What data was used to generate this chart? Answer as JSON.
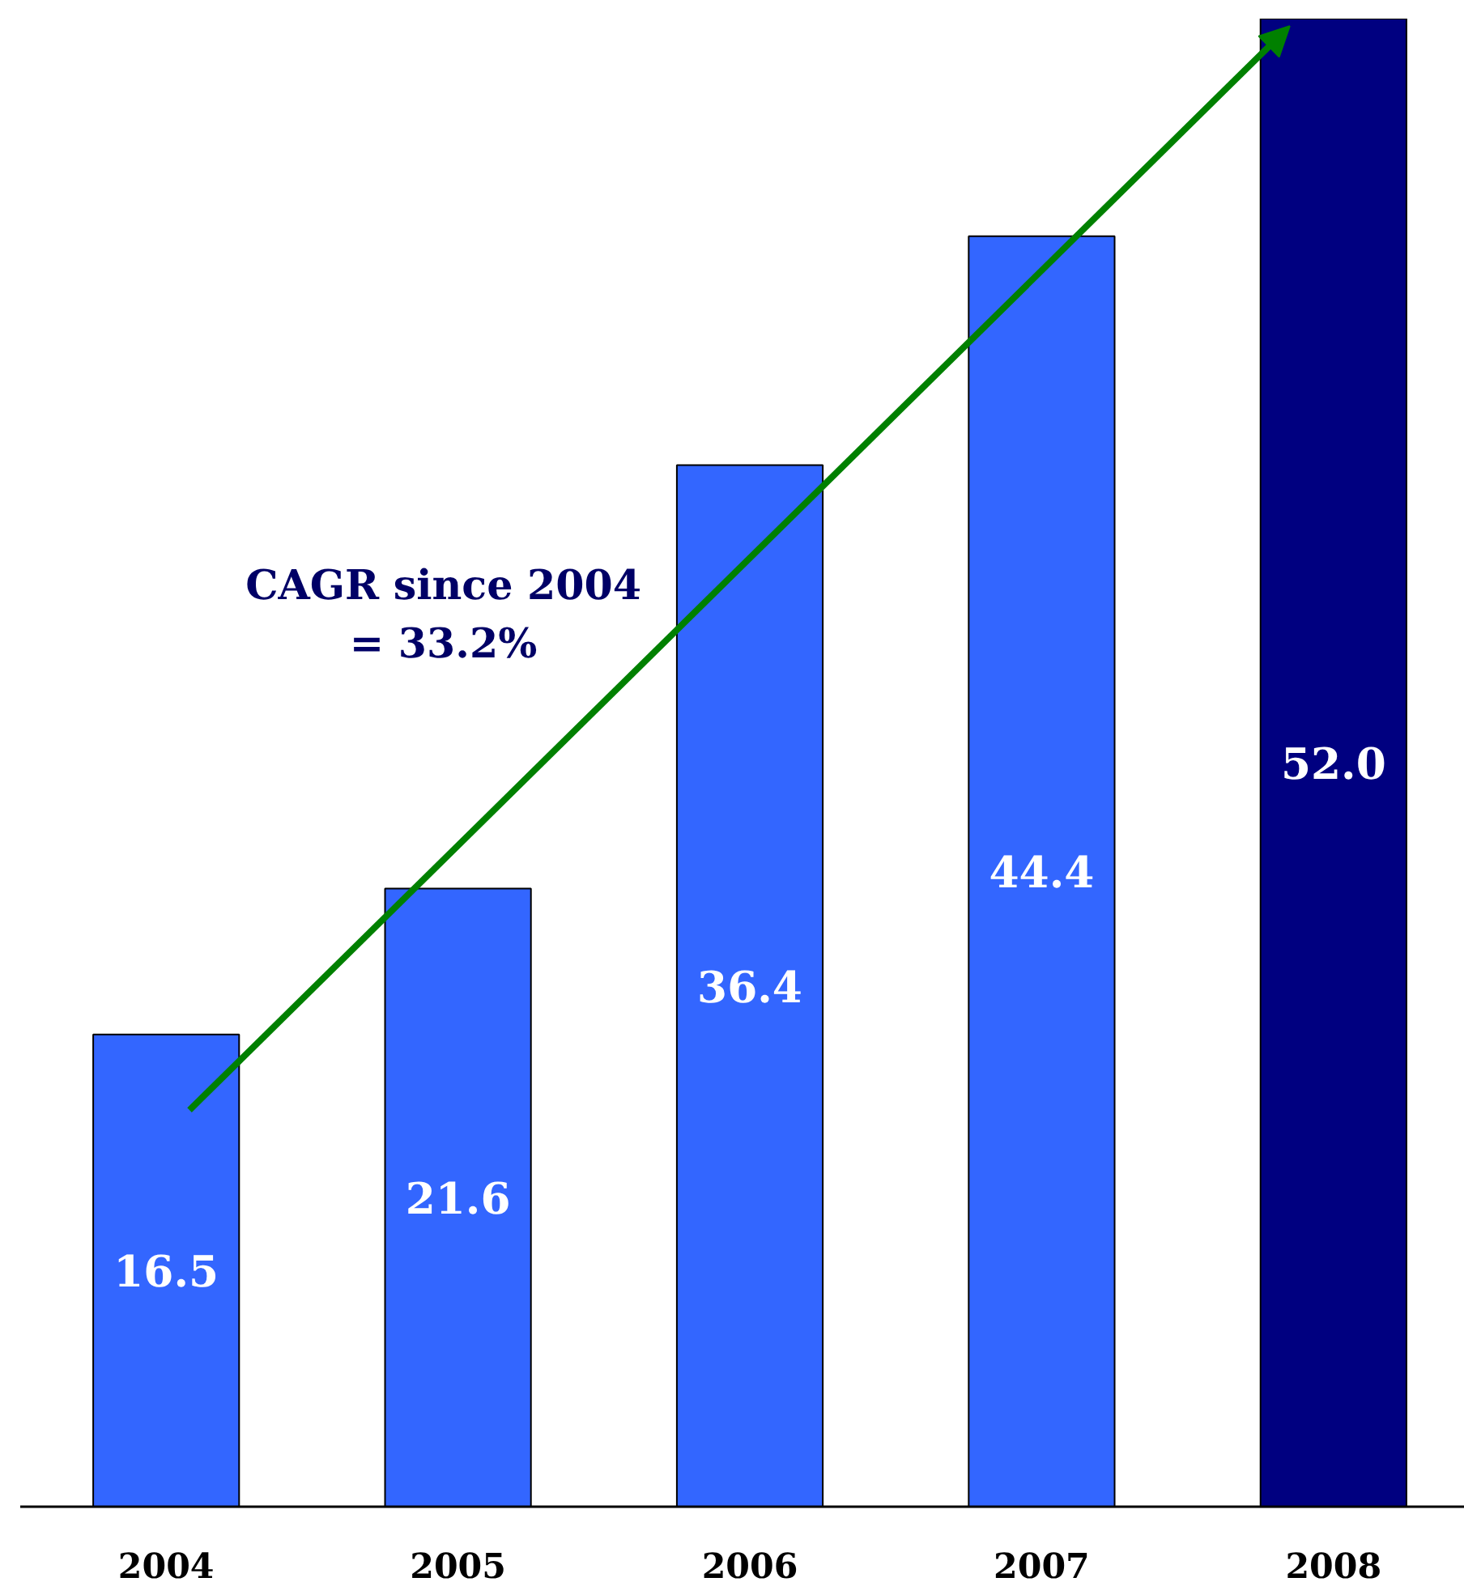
{
  "chart_data": {
    "type": "bar",
    "categories": [
      "2004",
      "2005",
      "2006",
      "2007",
      "2008"
    ],
    "values": [
      16.5,
      21.6,
      36.4,
      44.4,
      52.0
    ],
    "colors": [
      "#3366ff",
      "#3366ff",
      "#3366ff",
      "#3366ff",
      "#000080"
    ],
    "ylim": [
      0,
      52
    ],
    "value_labels": [
      "16.5",
      "21.6",
      "36.4",
      "44.4",
      "52.0"
    ],
    "tick_labels": "x",
    "grid": false,
    "annotations": [
      "CAGR since 2004\n= 33.2%"
    ]
  }
}
